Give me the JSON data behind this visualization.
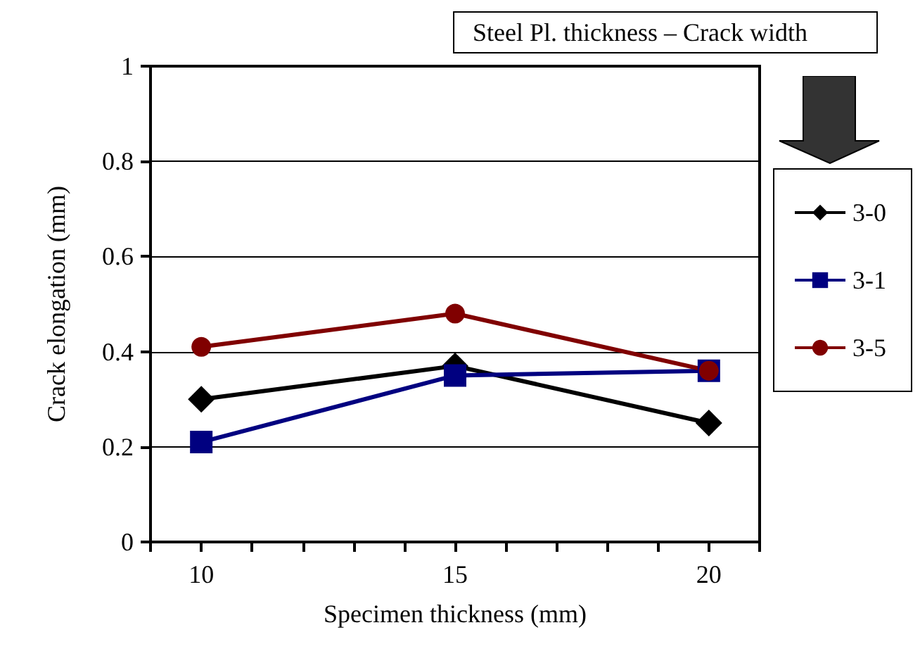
{
  "chart_data": {
    "type": "line",
    "title": "Steel Pl. thickness – Crack width",
    "xlabel": "Specimen thickness (mm)",
    "ylabel": "Crack elongation (mm)",
    "x": [
      10,
      15,
      20
    ],
    "series": [
      {
        "name": "3-0",
        "color": "#000000",
        "marker": "diamond",
        "values": [
          0.3,
          0.37,
          0.25
        ]
      },
      {
        "name": "3-1",
        "color": "#000080",
        "marker": "square",
        "values": [
          0.21,
          0.35,
          0.36
        ]
      },
      {
        "name": "3-5",
        "color": "#800000",
        "marker": "circle",
        "values": [
          0.41,
          0.48,
          0.36
        ]
      }
    ],
    "xlim": [
      9,
      21
    ],
    "xticks": [
      {
        "value": 9,
        "label": null
      },
      10,
      {
        "value": 11,
        "label": null
      },
      {
        "value": 12,
        "label": null
      },
      {
        "value": 13,
        "label": null
      },
      {
        "value": 14,
        "label": null
      },
      15,
      {
        "value": 16,
        "label": null
      },
      {
        "value": 17,
        "label": null
      },
      {
        "value": 18,
        "label": null
      },
      {
        "value": 19,
        "label": null
      },
      20,
      {
        "value": 21,
        "label": null
      }
    ],
    "ylim": [
      0,
      1
    ],
    "yticks": [
      0,
      0.2,
      0.4,
      0.6,
      0.8,
      1
    ],
    "grid": "y",
    "legend": "right",
    "line_style": "solid"
  }
}
